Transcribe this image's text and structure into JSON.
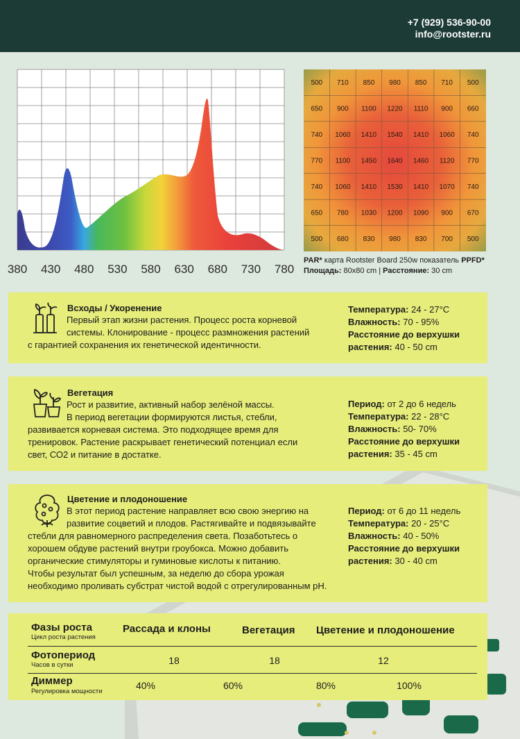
{
  "header": {
    "phone": "+7 (929) 536-90-00",
    "email": "info@rootster.ru"
  },
  "spectrum": {
    "x_ticks": [
      "380",
      "430",
      "480",
      "530",
      "580",
      "630",
      "680",
      "730",
      "780"
    ]
  },
  "par": {
    "grid": [
      [
        "500",
        "710",
        "850",
        "980",
        "850",
        "710",
        "500"
      ],
      [
        "650",
        "900",
        "1100",
        "1220",
        "1110",
        "900",
        "660"
      ],
      [
        "740",
        "1060",
        "1410",
        "1540",
        "1410",
        "1060",
        "740"
      ],
      [
        "770",
        "1100",
        "1450",
        "1640",
        "1460",
        "1120",
        "770"
      ],
      [
        "740",
        "1060",
        "1410",
        "1530",
        "1410",
        "1070",
        "740"
      ],
      [
        "650",
        "780",
        "1030",
        "1200",
        "1090",
        "900",
        "670"
      ],
      [
        "500",
        "680",
        "830",
        "980",
        "830",
        "700",
        "500"
      ]
    ],
    "caption_par": "PAR*",
    "caption_text": " карта Rootster Board 250w показатель ",
    "caption_ppfd": "PPFD*",
    "area_label": "Площадь:",
    "area_value": " 80x80 cm | ",
    "distance_label": "Расстояние:",
    "distance_value": " 30 cm"
  },
  "cards": {
    "c1": {
      "title": "Всходы / Укоренение",
      "lines": [
        "Первый этап жизни растения. Процесс роста корневой",
        "системы. Клонирование - процесс размножения растений",
        "с гарантией сохранения их генетической идентичности."
      ],
      "stats": {
        "temp_label": "Температура:",
        "temp_value": " 24 - 27°С",
        "hum_label": "Влажность:",
        "hum_value": " 70 - 95%",
        "dist_label_1": "Расстояние до верхушки",
        "dist_label_2": "растения:",
        "dist_value": " 40 - 50 cm"
      }
    },
    "c2": {
      "title": "Вегетация",
      "lines": [
        "Рост и развитие, активный набор зелёной массы.",
        "В период вегетации формируются листья, стебли,",
        "развивается корневая система. Это подходящее время для",
        "тренировок. Растение раскрывает генетический потенциал если",
        "свет, СО2 и питание в достатке."
      ],
      "stats": {
        "period_label": "Период:",
        "period_value": " от 2 до 6 недель",
        "temp_label": "Температура:",
        "temp_value": " 22 - 28°С",
        "hum_label": "Влажность:",
        "hum_value": " 50-  70%",
        "dist_label_1": "Расстояние до верхушки",
        "dist_label_2": "растения:",
        "dist_value": " 35 - 45 cm"
      }
    },
    "c3": {
      "title": "Цветение и плодоношение",
      "lines": [
        "В этот период растение направляет всю свою энергию на",
        "развитие соцветий и плодов. Растягивайте и подвязывайте",
        "стебли для равномерного распределения света. Позаботьтесь о",
        "хорошем обдуве растений внутри гроубокса. Можно добавить",
        "органические стимуляторы и гуминовые кислоты к питанию.",
        "Чтобы результат был успешным, за неделю до сбора урожая",
        "необходимо проливать субстрат чистой водой с отрегулированным рН."
      ],
      "stats": {
        "period_label": "Период:",
        "period_value": " от 6 до 11 недель",
        "temp_label": "Температура:",
        "temp_value": " 20 - 25°С",
        "hum_label": "Влажность:",
        "hum_value": " 40 - 50%",
        "dist_label_1": "Расстояние до верхушки",
        "dist_label_2": "растения:",
        "dist_value": " 30  - 40 cm"
      }
    }
  },
  "table": {
    "phases_title": "Фазы роста",
    "phases_sub": "Цикл роста растения",
    "col_seedlings": "Рассада и клоны",
    "col_veg": "Вегетация",
    "col_bloom": "Цветение и плодоношение",
    "photo_title": "Фотопериод",
    "photo_sub": "Часов в сутки",
    "photo_values": [
      "18",
      "18",
      "12"
    ],
    "dimmer_title": "Диммер",
    "dimmer_sub": "Регулировка мощности",
    "dimmer_values": [
      "40%",
      "60%",
      "80%",
      "100%"
    ]
  }
}
